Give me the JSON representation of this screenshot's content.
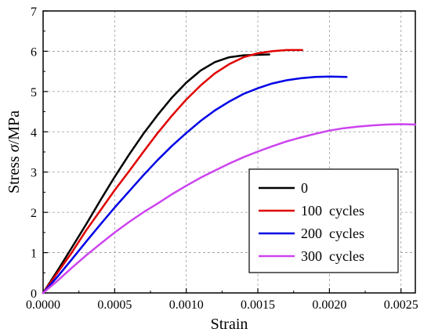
{
  "chart_data": {
    "type": "line",
    "xlabel": "Strain",
    "ylabel_prefix": "Stress ",
    "ylabel_symbol": "σ",
    "ylabel_suffix": "/MPa",
    "xlim": [
      0,
      0.0026
    ],
    "ylim": [
      0,
      7
    ],
    "xticks": [
      "0.0000",
      "0.0005",
      "0.0010",
      "0.0015",
      "0.0020",
      "0.0025"
    ],
    "yticks": [
      "0",
      "1",
      "2",
      "3",
      "4",
      "5",
      "6",
      "7"
    ],
    "grid": true,
    "legend_position": "bottom-right",
    "series": [
      {
        "name": "0",
        "color": "#000000",
        "points": [
          [
            0,
            0
          ],
          [
            0.0001,
            0.55
          ],
          [
            0.0002,
            1.12
          ],
          [
            0.0003,
            1.7
          ],
          [
            0.0004,
            2.3
          ],
          [
            0.0005,
            2.88
          ],
          [
            0.0006,
            3.43
          ],
          [
            0.0007,
            3.95
          ],
          [
            0.0008,
            4.42
          ],
          [
            0.0009,
            4.85
          ],
          [
            0.001,
            5.22
          ],
          [
            0.0011,
            5.52
          ],
          [
            0.0012,
            5.73
          ],
          [
            0.0013,
            5.85
          ],
          [
            0.0014,
            5.9
          ],
          [
            0.00158,
            5.92
          ]
        ]
      },
      {
        "name": "100  cycles",
        "color": "#e00000",
        "points": [
          [
            0,
            0
          ],
          [
            0.0001,
            0.5
          ],
          [
            0.0002,
            1.0
          ],
          [
            0.0003,
            1.55
          ],
          [
            0.0004,
            2.05
          ],
          [
            0.0005,
            2.55
          ],
          [
            0.0006,
            3.02
          ],
          [
            0.0007,
            3.5
          ],
          [
            0.0008,
            3.97
          ],
          [
            0.0009,
            4.4
          ],
          [
            0.001,
            4.8
          ],
          [
            0.0011,
            5.15
          ],
          [
            0.0012,
            5.45
          ],
          [
            0.0013,
            5.68
          ],
          [
            0.0014,
            5.85
          ],
          [
            0.0015,
            5.95
          ],
          [
            0.0016,
            6.0
          ],
          [
            0.0017,
            6.03
          ],
          [
            0.00181,
            6.03
          ]
        ]
      },
      {
        "name": "200  cycles",
        "color": "#0000e6",
        "points": [
          [
            0,
            0
          ],
          [
            0.0001,
            0.4
          ],
          [
            0.0002,
            0.83
          ],
          [
            0.0003,
            1.27
          ],
          [
            0.0004,
            1.7
          ],
          [
            0.0005,
            2.12
          ],
          [
            0.0006,
            2.52
          ],
          [
            0.0007,
            2.92
          ],
          [
            0.0008,
            3.3
          ],
          [
            0.0009,
            3.65
          ],
          [
            0.001,
            3.97
          ],
          [
            0.0011,
            4.27
          ],
          [
            0.0012,
            4.53
          ],
          [
            0.0013,
            4.75
          ],
          [
            0.0014,
            4.94
          ],
          [
            0.0015,
            5.08
          ],
          [
            0.0016,
            5.2
          ],
          [
            0.0017,
            5.28
          ],
          [
            0.0018,
            5.33
          ],
          [
            0.0019,
            5.36
          ],
          [
            0.002,
            5.37
          ],
          [
            0.00212,
            5.36
          ]
        ]
      },
      {
        "name": "300  cycles",
        "color": "#cc44ee",
        "points": [
          [
            0,
            0
          ],
          [
            0.0001,
            0.3
          ],
          [
            0.0002,
            0.62
          ],
          [
            0.0003,
            0.93
          ],
          [
            0.0004,
            1.22
          ],
          [
            0.0005,
            1.5
          ],
          [
            0.0006,
            1.76
          ],
          [
            0.0007,
            2.0
          ],
          [
            0.0008,
            2.22
          ],
          [
            0.0009,
            2.45
          ],
          [
            0.001,
            2.66
          ],
          [
            0.0011,
            2.86
          ],
          [
            0.0012,
            3.04
          ],
          [
            0.0013,
            3.21
          ],
          [
            0.0014,
            3.37
          ],
          [
            0.0015,
            3.51
          ],
          [
            0.0016,
            3.64
          ],
          [
            0.0017,
            3.76
          ],
          [
            0.0018,
            3.86
          ],
          [
            0.0019,
            3.95
          ],
          [
            0.002,
            4.03
          ],
          [
            0.0021,
            4.09
          ],
          [
            0.0022,
            4.13
          ],
          [
            0.0023,
            4.16
          ],
          [
            0.0024,
            4.18
          ],
          [
            0.0025,
            4.19
          ],
          [
            0.0026,
            4.18
          ]
        ]
      }
    ]
  }
}
